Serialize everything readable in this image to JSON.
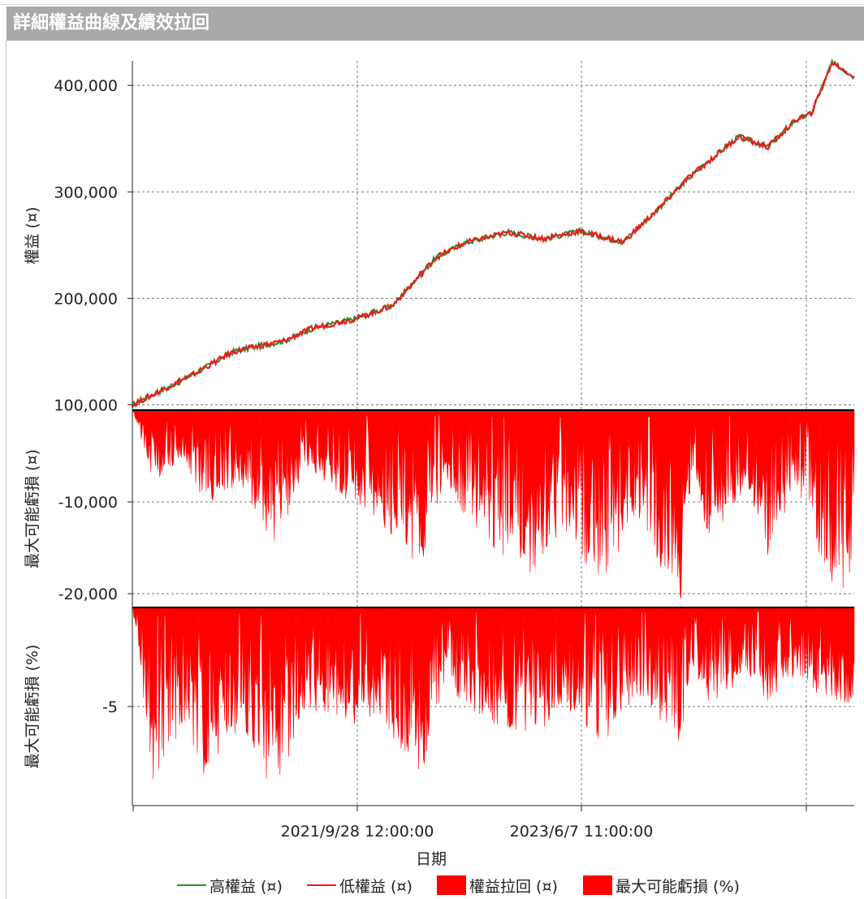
{
  "window": {
    "title": "詳細權益曲線及績效拉回"
  },
  "legend": [
    {
      "label": "高權益 (¤)",
      "color": "#2e8b2e",
      "kind": "line"
    },
    {
      "label": "低權益 (¤)",
      "color": "#ee1c1c",
      "kind": "line"
    },
    {
      "label": "權益拉回 (¤)",
      "color": "#ff0000",
      "kind": "box"
    },
    {
      "label": "最大可能虧損 (%)",
      "color": "#ff0000",
      "kind": "box"
    }
  ],
  "chart_data": [
    {
      "type": "line",
      "ylabel": "權益 (¤)",
      "ylim": [
        95000,
        423000
      ],
      "yticks": [
        "100,000",
        "200,000",
        "300,000",
        "400,000"
      ],
      "ytick_values": [
        100000,
        200000,
        300000,
        400000
      ],
      "grid": true,
      "x": [
        0,
        0.08,
        0.14,
        0.21,
        0.25,
        0.31,
        0.36,
        0.42,
        0.46,
        0.52,
        0.57,
        0.62,
        0.68,
        0.73,
        0.77,
        0.84,
        0.88,
        0.92,
        0.94,
        0.97,
        1.0
      ],
      "series": [
        {
          "name": "高權益 (¤)",
          "color": "#2e8b2e",
          "values": [
            100000,
            127000,
            150000,
            160000,
            172000,
            181000,
            193000,
            238000,
            252000,
            262000,
            256000,
            263000,
            253000,
            285000,
            313000,
            352000,
            342000,
            368000,
            373000,
            422000,
            408000
          ]
        },
        {
          "name": "低權益 (¤)",
          "color": "#ee1c1c",
          "values": [
            100000,
            127000,
            150000,
            160000,
            172000,
            181000,
            193000,
            238000,
            252000,
            262000,
            256000,
            263000,
            253000,
            285000,
            313000,
            352000,
            342000,
            368000,
            373000,
            422000,
            408000
          ]
        }
      ]
    },
    {
      "type": "area",
      "ylabel": "最大可能虧損 (¤)",
      "ylim": [
        -21500,
        0
      ],
      "yticks": [
        "-10,000",
        "-20,000"
      ],
      "ytick_values": [
        -10000,
        -20000
      ],
      "grid": true,
      "x": [
        0,
        0.03,
        0.07,
        0.1,
        0.15,
        0.2,
        0.24,
        0.3,
        0.34,
        0.4,
        0.43,
        0.48,
        0.55,
        0.6,
        0.65,
        0.7,
        0.76,
        0.77,
        0.8,
        0.85,
        0.88,
        0.92,
        0.97,
        1.0
      ],
      "series": [
        {
          "name": "權益拉回 (¤)",
          "color": "#ff0000",
          "values": [
            0,
            -8000,
            -5000,
            -10500,
            -9000,
            -15000,
            -6000,
            -10000,
            -12000,
            -17500,
            -8000,
            -14000,
            -18000,
            -14000,
            -19000,
            -12000,
            -21500,
            -9000,
            -14000,
            -9000,
            -16000,
            -8000,
            -21000,
            -18000
          ]
        }
      ]
    },
    {
      "type": "area",
      "ylabel": "最大可能虧損 (%)",
      "ylim": [
        -10,
        0
      ],
      "yticks": [
        "-5"
      ],
      "ytick_values": [
        -5
      ],
      "grid": true,
      "x": [
        0,
        0.03,
        0.07,
        0.1,
        0.15,
        0.2,
        0.24,
        0.3,
        0.34,
        0.4,
        0.43,
        0.48,
        0.55,
        0.6,
        0.65,
        0.7,
        0.76,
        0.77,
        0.8,
        0.85,
        0.88,
        0.92,
        0.97,
        1.0
      ],
      "series": [
        {
          "name": "最大可能虧損 (%)",
          "color": "#ff0000",
          "values": [
            0,
            -9,
            -6,
            -8.5,
            -6,
            -9.8,
            -5,
            -6,
            -5.5,
            -8.6,
            -4,
            -5.5,
            -6.8,
            -5,
            -7,
            -4.5,
            -7,
            -4,
            -5,
            -3.5,
            -4.8,
            -3.5,
            -5,
            -4.8
          ]
        }
      ]
    }
  ],
  "xaxis": {
    "label": "日期",
    "ticks": [
      "2021/9/28 12:00:00",
      "2023/6/7 11:00:00"
    ]
  }
}
